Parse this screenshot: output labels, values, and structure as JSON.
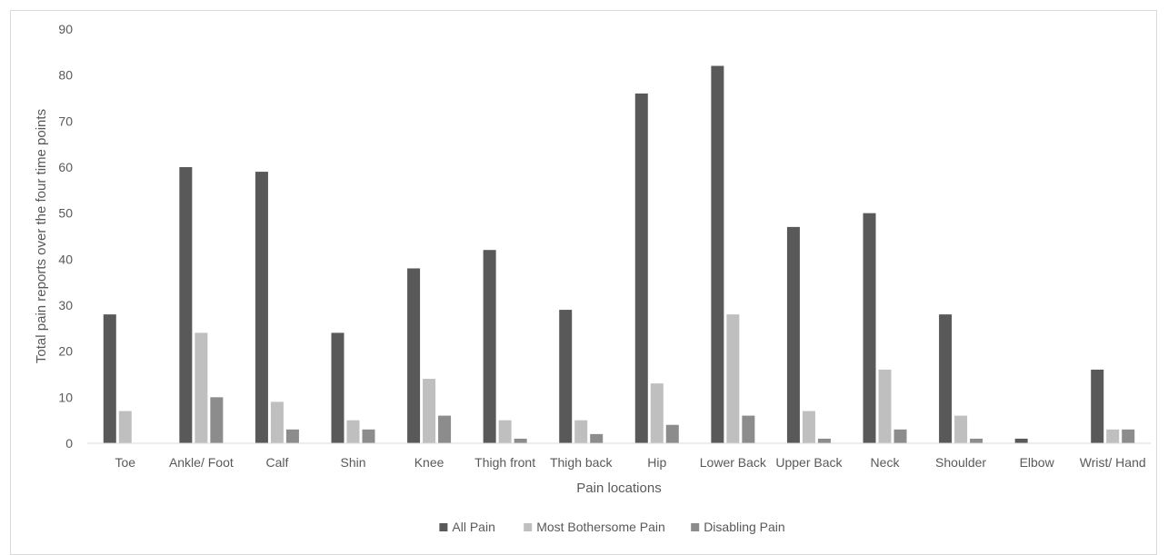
{
  "chart_data": {
    "type": "bar",
    "title": "",
    "xlabel": "Pain locations",
    "ylabel": "Total pain reports over the four time points",
    "ylim": [
      0,
      90
    ],
    "ytick_step": 10,
    "grid": false,
    "legend_position": "bottom",
    "categories": [
      "Toe",
      "Ankle/ Foot",
      "Calf",
      "Shin",
      "Knee",
      "Thigh front",
      "Thigh back",
      "Hip",
      "Lower Back",
      "Upper Back",
      "Neck",
      "Shoulder",
      "Elbow",
      "Wrist/ Hand"
    ],
    "series": [
      {
        "name": "All Pain",
        "color": "#595959",
        "values": [
          28,
          60,
          59,
          24,
          38,
          42,
          29,
          76,
          82,
          47,
          50,
          28,
          1,
          16
        ]
      },
      {
        "name": "Most Bothersome Pain",
        "color": "#bfbfbf",
        "values": [
          7,
          24,
          9,
          5,
          14,
          5,
          5,
          13,
          28,
          7,
          16,
          6,
          0,
          3
        ]
      },
      {
        "name": "Disabling Pain",
        "color": "#8c8c8c",
        "values": [
          0,
          10,
          3,
          3,
          6,
          1,
          2,
          4,
          6,
          1,
          3,
          1,
          0,
          3
        ]
      }
    ]
  }
}
